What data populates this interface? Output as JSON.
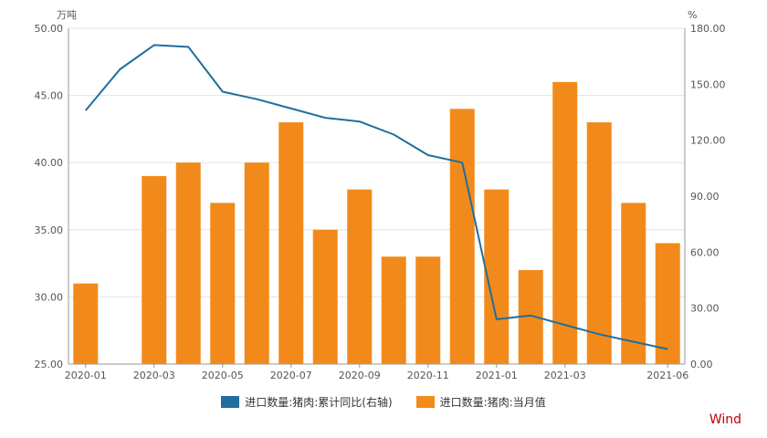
{
  "chart_data": {
    "type": "bar",
    "left_unit": "万吨",
    "right_unit": "%",
    "left_ylim": [
      25,
      50
    ],
    "right_ylim": [
      0,
      180
    ],
    "left_ticks": [
      "25.00",
      "30.00",
      "35.00",
      "40.00",
      "45.00",
      "50.00"
    ],
    "right_ticks": [
      "0.00",
      "30.00",
      "60.00",
      "90.00",
      "120.00",
      "150.00",
      "180.00"
    ],
    "categories": [
      "2020-01",
      "2020-02",
      "2020-03",
      "2020-04",
      "2020-05",
      "2020-06",
      "2020-07",
      "2020-08",
      "2020-09",
      "2020-10",
      "2020-11",
      "2020-12",
      "2021-01",
      "2021-02",
      "2021-03",
      "2021-04",
      "2021-05",
      "2021-06"
    ],
    "x_tick_labels": [
      "2020-01",
      "2020-03",
      "2020-05",
      "2020-07",
      "2020-09",
      "2020-11",
      "2021-01",
      "2021-03",
      "2021-06"
    ],
    "series": [
      {
        "name": "进口数量:猪肉:当月值",
        "type": "bar",
        "axis": "left",
        "color": "#f28a1b",
        "values": [
          31,
          null,
          39,
          40,
          37,
          40,
          43,
          35,
          38,
          33,
          33,
          44,
          38,
          32,
          46,
          43,
          37,
          34
        ]
      },
      {
        "name": "进口数量:猪肉:累计同比(右轴)",
        "type": "line",
        "axis": "right",
        "color": "#1f6e9e",
        "values": [
          136,
          158,
          171,
          170,
          146,
          142,
          137,
          132,
          130,
          123,
          112,
          108,
          24,
          26,
          21,
          16,
          12,
          8
        ]
      }
    ],
    "grid": true,
    "legend_position": "bottom"
  },
  "source_label": "Wind"
}
